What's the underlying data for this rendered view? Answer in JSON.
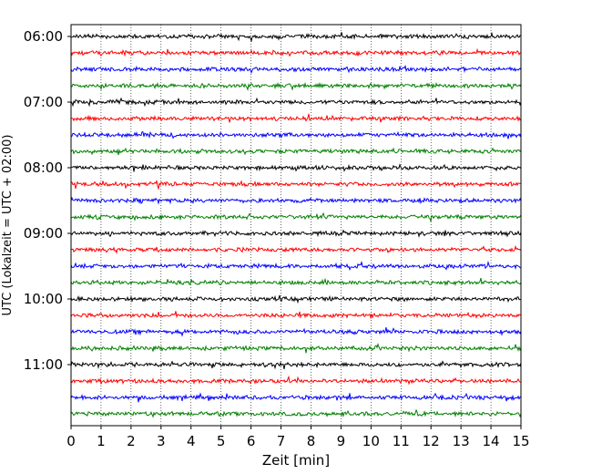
{
  "chart_data": {
    "type": "line",
    "subtype": "helicorder",
    "title": "",
    "xlabel": "Zeit  [min]",
    "ylabel": "UTC (Lokalzeit = UTC + 02:00)",
    "xlim": [
      0,
      15
    ],
    "x_ticks": [
      0,
      1,
      2,
      3,
      4,
      5,
      6,
      7,
      8,
      9,
      10,
      11,
      12,
      13,
      14,
      15
    ],
    "x_tick_labels": [
      "0",
      "1",
      "2",
      "3",
      "4",
      "5",
      "6",
      "7",
      "8",
      "9",
      "10",
      "11",
      "12",
      "13",
      "14",
      "15"
    ],
    "trace_interval_min": 15,
    "start_time": "06:00",
    "trace_count": 24,
    "y_ticks": [
      "06:00",
      "07:00",
      "08:00",
      "09:00",
      "10:00",
      "11:00"
    ],
    "vertical_grid": "dotted",
    "trace_color_cycle": [
      "#000000",
      "#ff0000",
      "#0000ff",
      "#008000"
    ]
  }
}
